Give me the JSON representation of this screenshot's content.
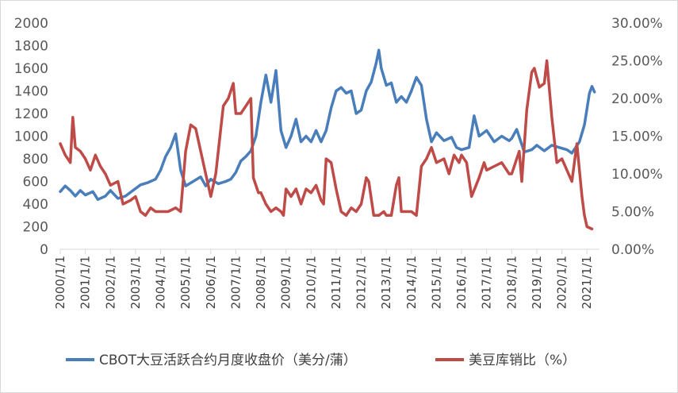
{
  "colors": {
    "price": "#4a7ebb",
    "ratio": "#be4b48",
    "axis": "#d9d9d9",
    "text": "#595959"
  },
  "chart_data": {
    "type": "line",
    "title": "",
    "xlabel": "",
    "ylabel_left": "",
    "ylabel_right": "",
    "x_start": 2000,
    "x_end": 2021.5,
    "categories": [
      "2000/1/1",
      "2001/1/1",
      "2002/1/1",
      "2003/1/1",
      "2004/1/1",
      "2005/1/1",
      "2006/1/1",
      "2007/1/1",
      "2008/1/1",
      "2009/1/1",
      "2010/1/1",
      "2011/1/1",
      "2012/1/1",
      "2013/1/1",
      "2014/1/1",
      "2015/1/1",
      "2016/1/1",
      "2017/1/1",
      "2018/1/1",
      "2019/1/1",
      "2020/1/1",
      "2021/1/1"
    ],
    "y_left": {
      "min": 0,
      "max": 2000,
      "ticks": [
        "0",
        "200",
        "400",
        "600",
        "800",
        "1000",
        "1200",
        "1400",
        "1600",
        "1800",
        "2000"
      ]
    },
    "y_right": {
      "min": 0,
      "max": 0.3,
      "ticks": [
        "0.00%",
        "5.00%",
        "10.00%",
        "15.00%",
        "20.00%",
        "25.00%",
        "30.00%"
      ]
    },
    "grid": false,
    "legend_position": "bottom",
    "series": [
      {
        "name": "CBOT大豆活跃合约月度收盘价（美分/蒲）",
        "axis": "left",
        "points": [
          [
            2000.0,
            510
          ],
          [
            2000.2,
            560
          ],
          [
            2000.4,
            520
          ],
          [
            2000.6,
            470
          ],
          [
            2000.8,
            520
          ],
          [
            2001.0,
            480
          ],
          [
            2001.3,
            510
          ],
          [
            2001.5,
            440
          ],
          [
            2001.8,
            470
          ],
          [
            2002.0,
            520
          ],
          [
            2002.3,
            450
          ],
          [
            2002.6,
            470
          ],
          [
            2002.9,
            520
          ],
          [
            2003.2,
            570
          ],
          [
            2003.5,
            590
          ],
          [
            2003.8,
            620
          ],
          [
            2004.0,
            700
          ],
          [
            2004.2,
            820
          ],
          [
            2004.4,
            900
          ],
          [
            2004.6,
            1020
          ],
          [
            2004.8,
            700
          ],
          [
            2005.0,
            560
          ],
          [
            2005.3,
            600
          ],
          [
            2005.6,
            640
          ],
          [
            2005.8,
            560
          ],
          [
            2006.0,
            620
          ],
          [
            2006.3,
            580
          ],
          [
            2006.6,
            600
          ],
          [
            2006.8,
            620
          ],
          [
            2007.0,
            680
          ],
          [
            2007.2,
            780
          ],
          [
            2007.4,
            820
          ],
          [
            2007.6,
            870
          ],
          [
            2007.8,
            1000
          ],
          [
            2008.0,
            1300
          ],
          [
            2008.2,
            1540
          ],
          [
            2008.4,
            1300
          ],
          [
            2008.6,
            1580
          ],
          [
            2008.8,
            1050
          ],
          [
            2009.0,
            900
          ],
          [
            2009.2,
            1000
          ],
          [
            2009.4,
            1150
          ],
          [
            2009.6,
            950
          ],
          [
            2009.8,
            1000
          ],
          [
            2010.0,
            950
          ],
          [
            2010.2,
            1050
          ],
          [
            2010.4,
            950
          ],
          [
            2010.6,
            1050
          ],
          [
            2010.8,
            1250
          ],
          [
            2011.0,
            1400
          ],
          [
            2011.2,
            1430
          ],
          [
            2011.4,
            1380
          ],
          [
            2011.6,
            1400
          ],
          [
            2011.8,
            1200
          ],
          [
            2012.0,
            1230
          ],
          [
            2012.2,
            1400
          ],
          [
            2012.4,
            1480
          ],
          [
            2012.6,
            1650
          ],
          [
            2012.7,
            1760
          ],
          [
            2012.8,
            1600
          ],
          [
            2013.0,
            1450
          ],
          [
            2013.2,
            1470
          ],
          [
            2013.4,
            1300
          ],
          [
            2013.6,
            1350
          ],
          [
            2013.8,
            1300
          ],
          [
            2014.0,
            1400
          ],
          [
            2014.2,
            1520
          ],
          [
            2014.4,
            1450
          ],
          [
            2014.6,
            1150
          ],
          [
            2014.8,
            950
          ],
          [
            2015.0,
            1030
          ],
          [
            2015.3,
            960
          ],
          [
            2015.6,
            990
          ],
          [
            2015.8,
            900
          ],
          [
            2016.0,
            880
          ],
          [
            2016.3,
            900
          ],
          [
            2016.5,
            1180
          ],
          [
            2016.7,
            1000
          ],
          [
            2017.0,
            1050
          ],
          [
            2017.3,
            950
          ],
          [
            2017.6,
            1000
          ],
          [
            2017.9,
            960
          ],
          [
            2018.0,
            980
          ],
          [
            2018.2,
            1060
          ],
          [
            2018.5,
            860
          ],
          [
            2018.8,
            880
          ],
          [
            2019.0,
            920
          ],
          [
            2019.3,
            870
          ],
          [
            2019.6,
            920
          ],
          [
            2019.9,
            900
          ],
          [
            2020.2,
            880
          ],
          [
            2020.4,
            850
          ],
          [
            2020.7,
            950
          ],
          [
            2020.9,
            1100
          ],
          [
            2021.1,
            1380
          ],
          [
            2021.2,
            1440
          ],
          [
            2021.3,
            1390
          ]
        ]
      },
      {
        "name": "美豆库销比（%）",
        "axis": "right",
        "points": [
          [
            2000.0,
            0.14
          ],
          [
            2000.2,
            0.125
          ],
          [
            2000.4,
            0.115
          ],
          [
            2000.5,
            0.175
          ],
          [
            2000.6,
            0.135
          ],
          [
            2000.8,
            0.13
          ],
          [
            2001.0,
            0.12
          ],
          [
            2001.2,
            0.105
          ],
          [
            2001.4,
            0.125
          ],
          [
            2001.6,
            0.11
          ],
          [
            2001.8,
            0.1
          ],
          [
            2002.0,
            0.085
          ],
          [
            2002.3,
            0.09
          ],
          [
            2002.5,
            0.06
          ],
          [
            2002.8,
            0.065
          ],
          [
            2003.0,
            0.07
          ],
          [
            2003.2,
            0.05
          ],
          [
            2003.4,
            0.045
          ],
          [
            2003.6,
            0.055
          ],
          [
            2003.8,
            0.05
          ],
          [
            2004.0,
            0.05
          ],
          [
            2004.3,
            0.05
          ],
          [
            2004.6,
            0.055
          ],
          [
            2004.8,
            0.05
          ],
          [
            2005.0,
            0.13
          ],
          [
            2005.2,
            0.165
          ],
          [
            2005.4,
            0.16
          ],
          [
            2005.6,
            0.13
          ],
          [
            2005.8,
            0.1
          ],
          [
            2006.0,
            0.07
          ],
          [
            2006.2,
            0.1
          ],
          [
            2006.5,
            0.19
          ],
          [
            2006.7,
            0.2
          ],
          [
            2006.9,
            0.22
          ],
          [
            2007.0,
            0.18
          ],
          [
            2007.2,
            0.18
          ],
          [
            2007.5,
            0.195
          ],
          [
            2007.6,
            0.2
          ],
          [
            2007.7,
            0.095
          ],
          [
            2007.9,
            0.075
          ],
          [
            2008.0,
            0.075
          ],
          [
            2008.2,
            0.06
          ],
          [
            2008.4,
            0.05
          ],
          [
            2008.6,
            0.055
          ],
          [
            2008.8,
            0.05
          ],
          [
            2008.9,
            0.045
          ],
          [
            2009.0,
            0.08
          ],
          [
            2009.2,
            0.07
          ],
          [
            2009.4,
            0.08
          ],
          [
            2009.6,
            0.06
          ],
          [
            2009.8,
            0.08
          ],
          [
            2010.0,
            0.075
          ],
          [
            2010.2,
            0.085
          ],
          [
            2010.4,
            0.065
          ],
          [
            2010.5,
            0.06
          ],
          [
            2010.6,
            0.12
          ],
          [
            2010.8,
            0.115
          ],
          [
            2011.0,
            0.08
          ],
          [
            2011.2,
            0.05
          ],
          [
            2011.4,
            0.045
          ],
          [
            2011.6,
            0.055
          ],
          [
            2011.8,
            0.05
          ],
          [
            2012.0,
            0.06
          ],
          [
            2012.2,
            0.095
          ],
          [
            2012.3,
            0.09
          ],
          [
            2012.5,
            0.045
          ],
          [
            2012.7,
            0.045
          ],
          [
            2012.9,
            0.05
          ],
          [
            2013.0,
            0.045
          ],
          [
            2013.2,
            0.045
          ],
          [
            2013.4,
            0.085
          ],
          [
            2013.5,
            0.095
          ],
          [
            2013.6,
            0.05
          ],
          [
            2013.8,
            0.05
          ],
          [
            2014.0,
            0.05
          ],
          [
            2014.2,
            0.045
          ],
          [
            2014.4,
            0.11
          ],
          [
            2014.6,
            0.12
          ],
          [
            2014.8,
            0.135
          ],
          [
            2015.0,
            0.115
          ],
          [
            2015.3,
            0.12
          ],
          [
            2015.5,
            0.1
          ],
          [
            2015.7,
            0.125
          ],
          [
            2015.9,
            0.115
          ],
          [
            2016.0,
            0.125
          ],
          [
            2016.2,
            0.115
          ],
          [
            2016.4,
            0.07
          ],
          [
            2016.7,
            0.095
          ],
          [
            2016.9,
            0.115
          ],
          [
            2017.0,
            0.105
          ],
          [
            2017.3,
            0.11
          ],
          [
            2017.6,
            0.115
          ],
          [
            2017.9,
            0.1
          ],
          [
            2018.0,
            0.1
          ],
          [
            2018.3,
            0.13
          ],
          [
            2018.4,
            0.09
          ],
          [
            2018.6,
            0.185
          ],
          [
            2018.8,
            0.235
          ],
          [
            2018.9,
            0.24
          ],
          [
            2019.1,
            0.215
          ],
          [
            2019.3,
            0.22
          ],
          [
            2019.4,
            0.25
          ],
          [
            2019.6,
            0.175
          ],
          [
            2019.8,
            0.115
          ],
          [
            2020.0,
            0.12
          ],
          [
            2020.2,
            0.105
          ],
          [
            2020.4,
            0.09
          ],
          [
            2020.6,
            0.14
          ],
          [
            2020.8,
            0.07
          ],
          [
            2020.9,
            0.045
          ],
          [
            2021.0,
            0.03
          ],
          [
            2021.2,
            0.027
          ]
        ]
      }
    ]
  }
}
